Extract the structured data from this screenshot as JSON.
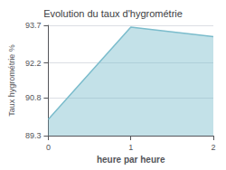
{
  "chart_data": {
    "type": "area",
    "title": "Evolution du taux d'hygrométrie",
    "xlabel": "heure par heure",
    "ylabel": "Taux hygrométrie %",
    "x": [
      0,
      1,
      2
    ],
    "values": [
      89.95,
      93.63,
      93.25
    ],
    "xlim": [
      0,
      2
    ],
    "ylim": [
      89.3,
      93.7
    ],
    "xticks": [
      0,
      1,
      2
    ],
    "yticks": [
      89.3,
      90.8,
      92.2,
      93.7
    ],
    "color": "#7bbccc",
    "grid": true
  }
}
